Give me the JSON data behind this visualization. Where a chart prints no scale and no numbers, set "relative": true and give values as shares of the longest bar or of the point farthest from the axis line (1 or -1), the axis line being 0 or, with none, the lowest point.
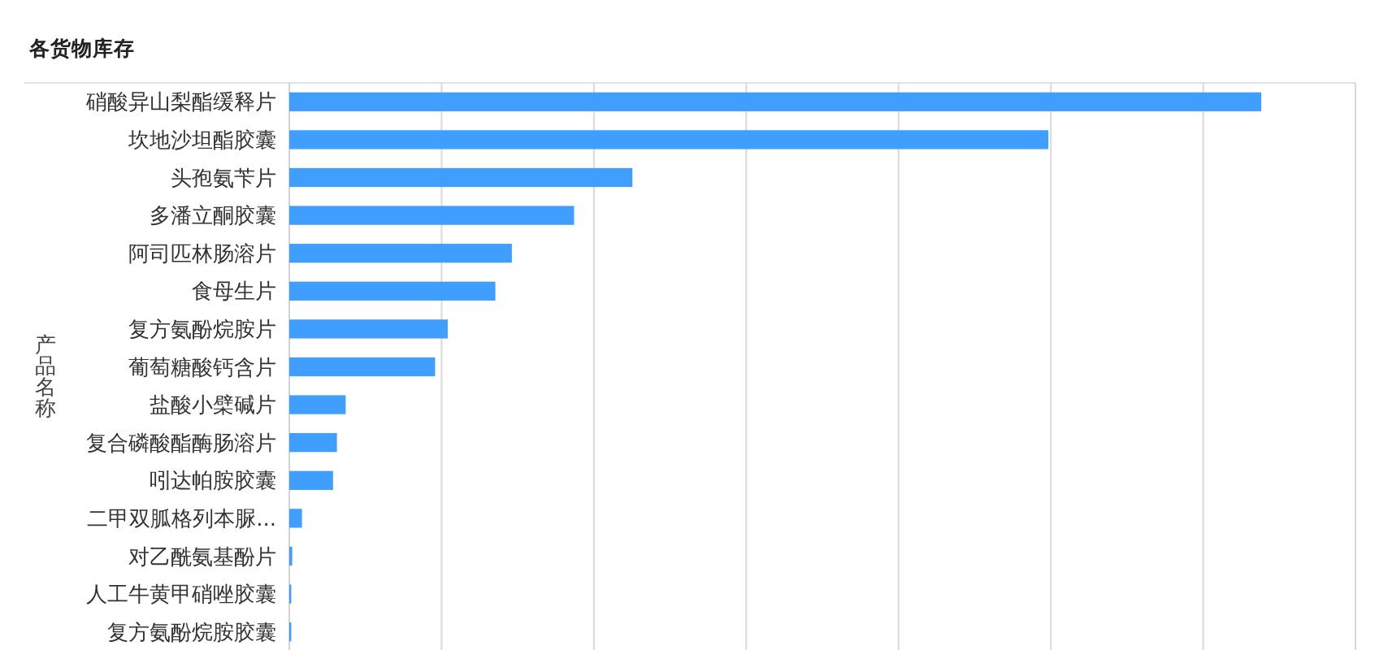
{
  "chart_data": {
    "type": "bar",
    "orientation": "horizontal",
    "title": "各货物库存",
    "ylabel": "产品名称",
    "categories": [
      "硝酸异山梨酯缓释片",
      "坎地沙坦酯胶囊",
      "头孢氨苄片",
      "多潘立酮胶囊",
      "阿司匹林肠溶片",
      "食母生片",
      "复方氨酚烷胺片",
      "葡萄糖酸钙含片",
      "盐酸小檗碱片",
      "复合磷酸酯酶肠溶片",
      "吲达帕胺胶囊",
      "二甲双胍格列本脲...",
      "对乙酰氨基酚片",
      "人工牛黄甲硝唑胶囊",
      "复方氨酚烷胺胶囊"
    ],
    "values": [
      1,
      0.781,
      0.353,
      0.293,
      0.229,
      0.212,
      0.163,
      0.15,
      0.058,
      0.049,
      0.045,
      0.013,
      0.003,
      0.002,
      0.002
    ],
    "color": "#409eff",
    "relative": true,
    "grid": true
  }
}
